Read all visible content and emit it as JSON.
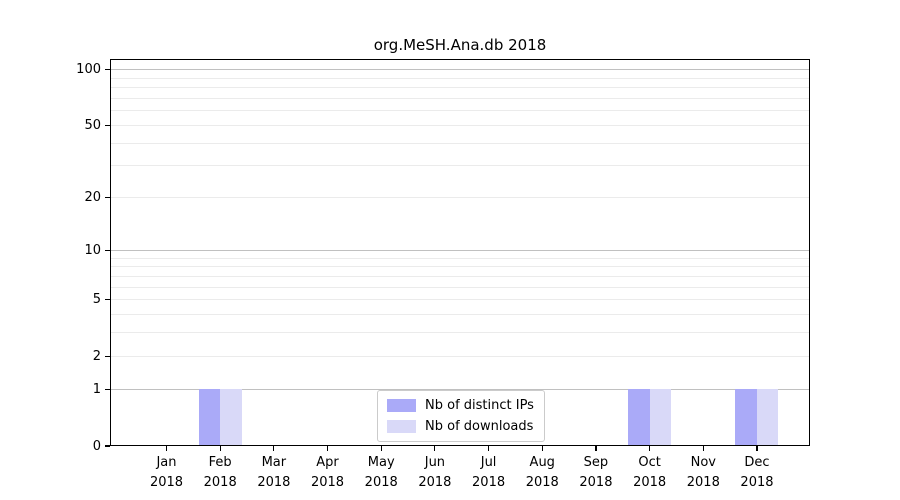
{
  "chart_data": {
    "type": "bar",
    "title": "org.MeSH.Ana.db 2018",
    "categories": [
      "Jan",
      "Feb",
      "Mar",
      "Apr",
      "May",
      "Jun",
      "Jul",
      "Aug",
      "Sep",
      "Oct",
      "Nov",
      "Dec"
    ],
    "x_year": "2018",
    "series": [
      {
        "name": "Nb of distinct IPs",
        "color": "#aaaaf8",
        "values": [
          0,
          1,
          0,
          0,
          0,
          0,
          0,
          0,
          0,
          1,
          0,
          1
        ]
      },
      {
        "name": "Nb of downloads",
        "color": "#d9d9f8",
        "values": [
          0,
          1,
          0,
          0,
          0,
          0,
          0,
          0,
          0,
          1,
          0,
          1
        ]
      }
    ],
    "xlabel": "",
    "ylabel": "",
    "y_scale": "log1p",
    "ylim": [
      0,
      114
    ],
    "y_ticks": [
      "0",
      "1",
      "2",
      "5",
      "10",
      "20",
      "50",
      "100"
    ],
    "grid": {
      "on": true,
      "major_values": [
        1,
        10,
        100
      ],
      "minor_values": [
        2,
        3,
        4,
        5,
        6,
        7,
        8,
        9,
        20,
        30,
        40,
        50,
        60,
        70,
        80,
        90
      ],
      "major_color": "#c0c0c0",
      "minor_color": "#ebebeb"
    },
    "legend_position": "lower center",
    "axis_color": "#000000",
    "background_color": "#ffffff"
  }
}
